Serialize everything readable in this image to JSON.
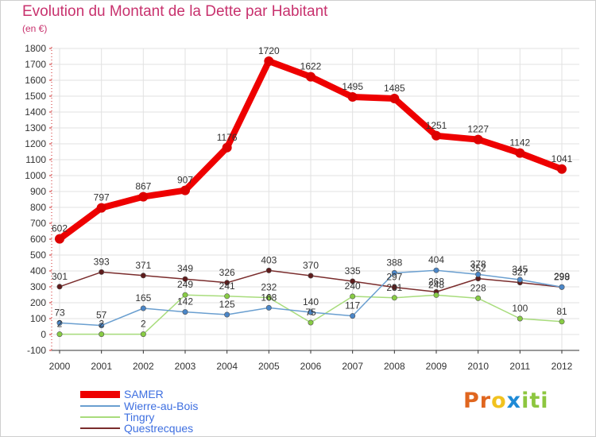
{
  "chart_data": {
    "type": "line",
    "title": "Evolution du Montant de la Dette par Habitant",
    "subtitle": "(en €)",
    "x": [
      "2000",
      "2001",
      "2002",
      "2003",
      "2004",
      "2005",
      "2006",
      "2007",
      "2008",
      "2009",
      "2010",
      "2011",
      "2012"
    ],
    "ylim": [
      -100,
      1800
    ],
    "yticks": [
      -100,
      0,
      100,
      200,
      300,
      400,
      500,
      600,
      700,
      800,
      900,
      1000,
      1100,
      1200,
      1300,
      1400,
      1500,
      1600,
      1700,
      1800
    ],
    "grid": true,
    "legend_position": "bottom-left",
    "series": [
      {
        "name": "SAMER",
        "color": "#ee0000",
        "marker": "#dd0000",
        "values": [
          602,
          797,
          867,
          907,
          1176,
          1720,
          1622,
          1495,
          1485,
          1251,
          1227,
          1142,
          1041
        ],
        "labels": [
          "602",
          "797",
          "867",
          "907",
          "1176",
          "1720",
          "1622",
          "1495",
          "1485",
          "1251",
          "1227",
          "1142",
          "1041"
        ]
      },
      {
        "name": "Wierre-au-Bois",
        "color": "#6a9fd0",
        "marker": "#4a86c8",
        "values": [
          73,
          57,
          165,
          142,
          125,
          168,
          140,
          117,
          388,
          404,
          378,
          345,
          299
        ],
        "labels": [
          "73",
          "57",
          "165",
          "142",
          "125",
          "168",
          "140",
          "117",
          "388",
          "404",
          "378",
          "345",
          "299"
        ]
      },
      {
        "name": "Tingry",
        "color": "#a8dc7c",
        "marker": "#88cc44",
        "values": [
          2,
          2,
          2,
          249,
          241,
          232,
          75,
          240,
          231,
          248,
          228,
          100,
          81
        ],
        "labels": [
          "2",
          "2",
          "2",
          "249",
          "241",
          "232",
          "75",
          "240",
          "231",
          "248",
          "228",
          "100",
          "81"
        ]
      },
      {
        "name": "Questrecques",
        "color": "#7a2c2c",
        "marker": "#5e1c1c",
        "values": [
          301,
          393,
          371,
          349,
          326,
          403,
          370,
          335,
          297,
          268,
          352,
          327,
          298
        ],
        "labels": [
          "301",
          "393",
          "371",
          "349",
          "326",
          "403",
          "370",
          "335",
          "297",
          "268",
          "352",
          "327",
          "298"
        ]
      }
    ]
  },
  "logo": {
    "part1": "Pr",
    "part2": "o",
    "part3": "x",
    "part4": "iti"
  }
}
